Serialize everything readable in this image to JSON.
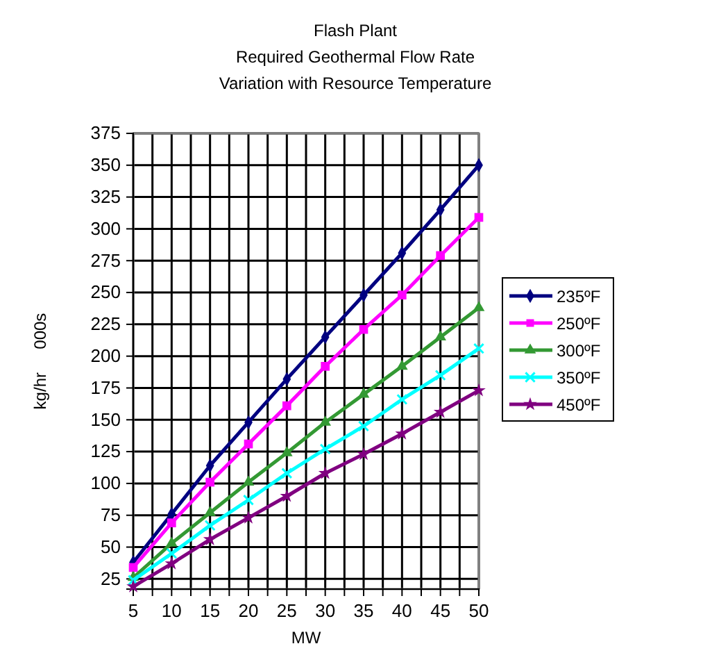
{
  "chart_data": {
    "type": "line",
    "title": "Flash Plant",
    "subtitle": "Required Geothermal Flow Rate\nVariation with Resource Temperature",
    "xlabel": "MW",
    "ylabel": "kg/hr     000s",
    "x": [
      5,
      10,
      15,
      20,
      25,
      30,
      35,
      40,
      45,
      50
    ],
    "xlim": [
      5,
      50
    ],
    "xticks": [
      5,
      {
        "value": 7.5,
        "label": null
      },
      10,
      {
        "value": 12.5,
        "label": null
      },
      15,
      {
        "value": 17.5,
        "label": null
      },
      20,
      {
        "value": 22.5,
        "label": null
      },
      25,
      {
        "value": 27.5,
        "label": null
      },
      30,
      {
        "value": 32.5,
        "label": null
      },
      35,
      {
        "value": 37.5,
        "label": null
      },
      40,
      {
        "value": 42.5,
        "label": null
      },
      45,
      {
        "value": 47.5,
        "label": null
      },
      50
    ],
    "ylim": [
      17,
      375
    ],
    "yticks": [
      25,
      50,
      75,
      100,
      125,
      150,
      175,
      200,
      225,
      250,
      275,
      300,
      325,
      350,
      375
    ],
    "grid": true,
    "legend": "right",
    "line_style": "solid",
    "series": [
      {
        "name": "235ºF",
        "color": "#000080",
        "marker": "diamond",
        "values": [
          38,
          76,
          114,
          148,
          182,
          215,
          248,
          281,
          315,
          350
        ]
      },
      {
        "name": "250ºF",
        "color": "#ff00ff",
        "marker": "square",
        "values": [
          34,
          69,
          101,
          131,
          161,
          192,
          221,
          248,
          279,
          309
        ]
      },
      {
        "name": "300ºF",
        "color": "#339933",
        "marker": "triangle",
        "values": [
          26,
          53,
          77,
          101,
          124,
          148,
          170,
          192,
          215,
          238
        ]
      },
      {
        "name": "350ºF",
        "color": "#00ffff",
        "marker": "cross",
        "values": [
          24,
          45,
          67,
          87,
          108,
          127,
          145,
          166,
          185,
          206
        ]
      },
      {
        "name": "450ºF",
        "color": "#800080",
        "marker": "star",
        "values": [
          19,
          37,
          56,
          73,
          90,
          108,
          123,
          139,
          156,
          173
        ]
      }
    ]
  }
}
